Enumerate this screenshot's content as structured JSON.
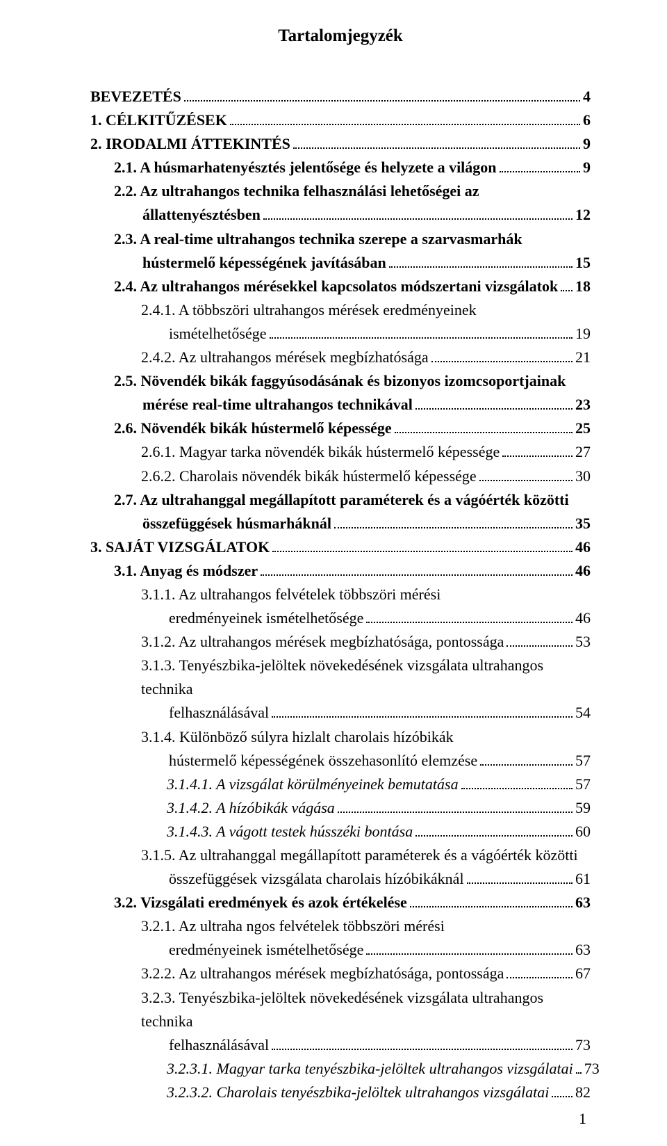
{
  "title": "Tartalomjegyzék",
  "page_number": "1",
  "entries": [
    {
      "indent": 0,
      "bold": true,
      "italic": false,
      "text": "BEVEZETÉS",
      "page": "4",
      "cont": null
    },
    {
      "indent": 0,
      "bold": true,
      "italic": false,
      "text": "1. CÉLKITŰZÉSEK",
      "page": "6",
      "cont": null
    },
    {
      "indent": 0,
      "bold": true,
      "italic": false,
      "text": "2. IRODALMI ÁTTEKINTÉS",
      "page": "9",
      "cont": null
    },
    {
      "indent": 1,
      "bold": true,
      "italic": false,
      "text": "2.1. A húsmarhatenyésztés jelentősége és helyzete a világon",
      "page": "9",
      "cont": null
    },
    {
      "indent": 1,
      "bold": true,
      "italic": false,
      "text": "2.2. Az ultrahangos technika felhasználási lehetőségei az állattenyésztésben",
      "page": "12",
      "cont": null,
      "split": 66
    },
    {
      "indent": 1,
      "bold": true,
      "italic": false,
      "text": "2.3. A real-time ultrahangos technika szerepe a szarvasmarhák hústermelő képességének javításában",
      "page": "15",
      "cont": null,
      "split": 68
    },
    {
      "indent": 1,
      "bold": true,
      "italic": false,
      "text": "2.4. Az ultrahangos mérésekkel kapcsolatos módszertani vizsgálatok",
      "page": "18",
      "cont": null
    },
    {
      "indent": 2,
      "bold": false,
      "italic": false,
      "text": "2.4.1. A többszöri ultrahangos mérések eredményeinek ismételhetősége",
      "page": "19",
      "cont": null,
      "split": 63
    },
    {
      "indent": 2,
      "bold": false,
      "italic": false,
      "text": "2.4.2. Az ultrahangos mérések megbízhatósága",
      "page": "21",
      "cont": null
    },
    {
      "indent": 1,
      "bold": true,
      "italic": false,
      "text": "2.5. Növendék bikák faggyúsodásának és bizonyos izomcsoportjainak mérése real-time ultrahangos technikával",
      "page": "23",
      "cont": null,
      "split": 65
    },
    {
      "indent": 1,
      "bold": true,
      "italic": false,
      "text": "2.6. Növendék bikák hústermelő képessége",
      "page": "25",
      "cont": null
    },
    {
      "indent": 2,
      "bold": false,
      "italic": false,
      "text": "2.6.1. Magyar tarka növendék bikák hústermelő képessége",
      "page": "27",
      "cont": null
    },
    {
      "indent": 2,
      "bold": false,
      "italic": false,
      "text": "2.6.2. Charolais növendék bikák hústermelő képessége",
      "page": "30",
      "cont": null
    },
    {
      "indent": 1,
      "bold": true,
      "italic": false,
      "text": "2.7. Az ultrahanggal megállapított paraméterek és a vágóérték közötti összefüggések húsmarháknál",
      "page": "35",
      "cont": null,
      "split": 70
    },
    {
      "indent": 0,
      "bold": true,
      "italic": false,
      "text": "3. SAJÁT VIZSGÁLATOK",
      "page": "46",
      "cont": null
    },
    {
      "indent": 1,
      "bold": true,
      "italic": false,
      "text": "3.1. Anyag és módszer",
      "page": "46",
      "cont": null
    },
    {
      "indent": 2,
      "bold": false,
      "italic": false,
      "text": "3.1.1. Az ultrahangos felvételek többszöri mérési eredményeinek ismételhetősége",
      "page": "46",
      "cont": null,
      "split": 62
    },
    {
      "indent": 2,
      "bold": false,
      "italic": false,
      "text": "3.1.2. Az ultrahangos mérések megbízhatósága, pontossága",
      "page": "53",
      "cont": null
    },
    {
      "indent": 2,
      "bold": false,
      "italic": false,
      "text": "3.1.3. Tenyészbika-jelöltek növekedésének vizsgálata ultrahangos technika felhasználásával",
      "page": "54",
      "cont": null,
      "split": 73
    },
    {
      "indent": 2,
      "bold": false,
      "italic": false,
      "text": "3.1.4. Különböző súlyra hizlalt charolais hízóbikák hústermelő képességének összehasonlító elemzése",
      "page": "57",
      "cont": null,
      "split": 60
    },
    {
      "indent": 3,
      "bold": false,
      "italic": true,
      "text": "3.1.4.1. A vizsgálat körülményeinek bemutatása",
      "page": "57",
      "cont": null
    },
    {
      "indent": 3,
      "bold": false,
      "italic": true,
      "text": "3.1.4.2. A hízóbikák vágása",
      "page": "59",
      "cont": null
    },
    {
      "indent": 3,
      "bold": false,
      "italic": true,
      "text": "3.1.4.3. A vágott testek hússzéki bontása",
      "page": "60",
      "cont": null
    },
    {
      "indent": 2,
      "bold": false,
      "italic": false,
      "text": "3.1.5. Az ultrahanggal megállapított paraméterek és a vágóérték közötti összefüggések vizsgálata charolais hízóbikáknál",
      "page": "61",
      "cont": null,
      "split": 71
    },
    {
      "indent": 1,
      "bold": true,
      "italic": false,
      "text": "3.2. Vizsgálati eredmények és azok értékelése",
      "page": "63",
      "cont": null
    },
    {
      "indent": 2,
      "bold": false,
      "italic": false,
      "text": "3.2.1. Az ultraha ngos felvételek többszöri mérési eredményeinek ismételhetősége",
      "page": "63",
      "cont": null,
      "split": 63
    },
    {
      "indent": 2,
      "bold": false,
      "italic": false,
      "text": "3.2.2. Az ultrahangos mérések megbízhatósága, pontossága",
      "page": "67",
      "cont": null
    },
    {
      "indent": 2,
      "bold": false,
      "italic": false,
      "text": "3.2.3. Tenyészbika-jelöltek növekedésének vizsgálata ultrahangos technika felhasználásával",
      "page": "73",
      "cont": null,
      "split": 73
    },
    {
      "indent": 3,
      "bold": false,
      "italic": true,
      "text": "3.2.3.1. Magyar tarka tenyészbika-jelöltek ultrahangos vizsgálatai",
      "page": "73",
      "cont": null
    },
    {
      "indent": 3,
      "bold": false,
      "italic": true,
      "text": "3.2.3.2. Charolais tenyészbika-jelöltek ultrahangos vizsgálatai",
      "page": "82",
      "cont": null
    }
  ]
}
